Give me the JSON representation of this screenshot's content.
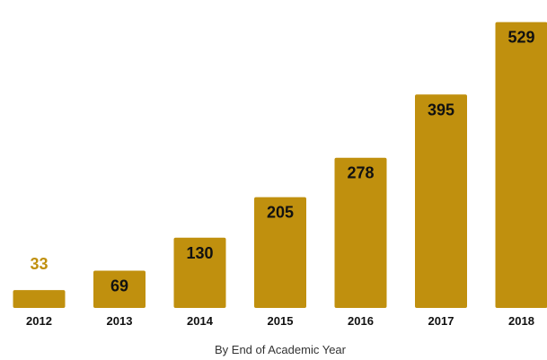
{
  "chart_data": {
    "type": "bar",
    "categories": [
      "2012",
      "2013",
      "2014",
      "2015",
      "2016",
      "2017",
      "2018"
    ],
    "values": [
      33,
      69,
      130,
      205,
      278,
      395,
      529
    ],
    "xlabel": "By End of Academic Year",
    "ylabel": "",
    "ylim": [
      0,
      540
    ],
    "grid": false,
    "legend": "none",
    "colors": {
      "bar": "#C0900E",
      "label_inside": "#111111",
      "label_outside": "#C0900E"
    }
  }
}
